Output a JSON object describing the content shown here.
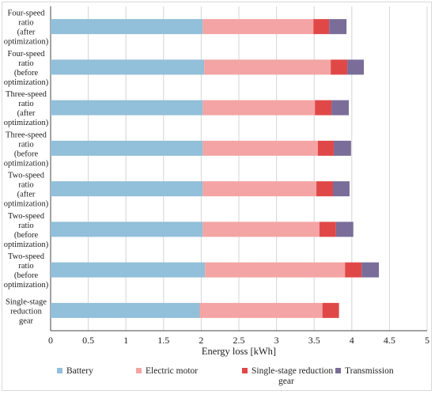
{
  "chart_data": {
    "type": "bar",
    "orientation": "horizontal",
    "stacked": true,
    "categories": [
      [
        "Four-speed",
        "ratio",
        "(after",
        "optimization)"
      ],
      [
        "Four-speed",
        "ratio",
        "(before",
        "optimization)"
      ],
      [
        "Three-speed",
        "ratio",
        "(after",
        "optimization)"
      ],
      [
        "Three-speed",
        "ratio",
        "(before",
        "optimization)"
      ],
      [
        "Two-speed",
        "ratio",
        "(after",
        "optimization)"
      ],
      [
        "Two-speed",
        "ratio",
        "(before",
        "optimization)"
      ],
      [
        "Two-speed",
        "ratio",
        "(before",
        "optimization)"
      ],
      [
        "Single-stage",
        "reduction",
        "gear"
      ]
    ],
    "series": [
      {
        "name": "Battery",
        "color": "#92bfd9",
        "values": [
          2.02,
          2.04,
          2.02,
          2.02,
          2.02,
          2.02,
          2.05,
          1.98
        ]
      },
      {
        "name": "Electric motor",
        "color": "#f4a4a4",
        "values": [
          1.47,
          1.68,
          1.49,
          1.53,
          1.51,
          1.55,
          1.86,
          1.63
        ]
      },
      {
        "name": "Single-stage reduction gear",
        "legend_lines": [
          "Single-stage reduction",
          "gear"
        ],
        "color": "#e04848",
        "values": [
          0.21,
          0.22,
          0.22,
          0.21,
          0.22,
          0.22,
          0.22,
          0.22
        ]
      },
      {
        "name": "Transmission",
        "color": "#7a6d99",
        "values": [
          0.23,
          0.22,
          0.23,
          0.23,
          0.22,
          0.23,
          0.23,
          0
        ]
      }
    ],
    "xlabel": "Energy loss [kWh]",
    "xlim": [
      0,
      5
    ],
    "xticks": [
      "0",
      "0.5",
      "1",
      "1.5",
      "2",
      "2.5",
      "3",
      "3.5",
      "4",
      "4.5",
      "5"
    ],
    "grid": "vertical",
    "legend_position": "bottom"
  }
}
